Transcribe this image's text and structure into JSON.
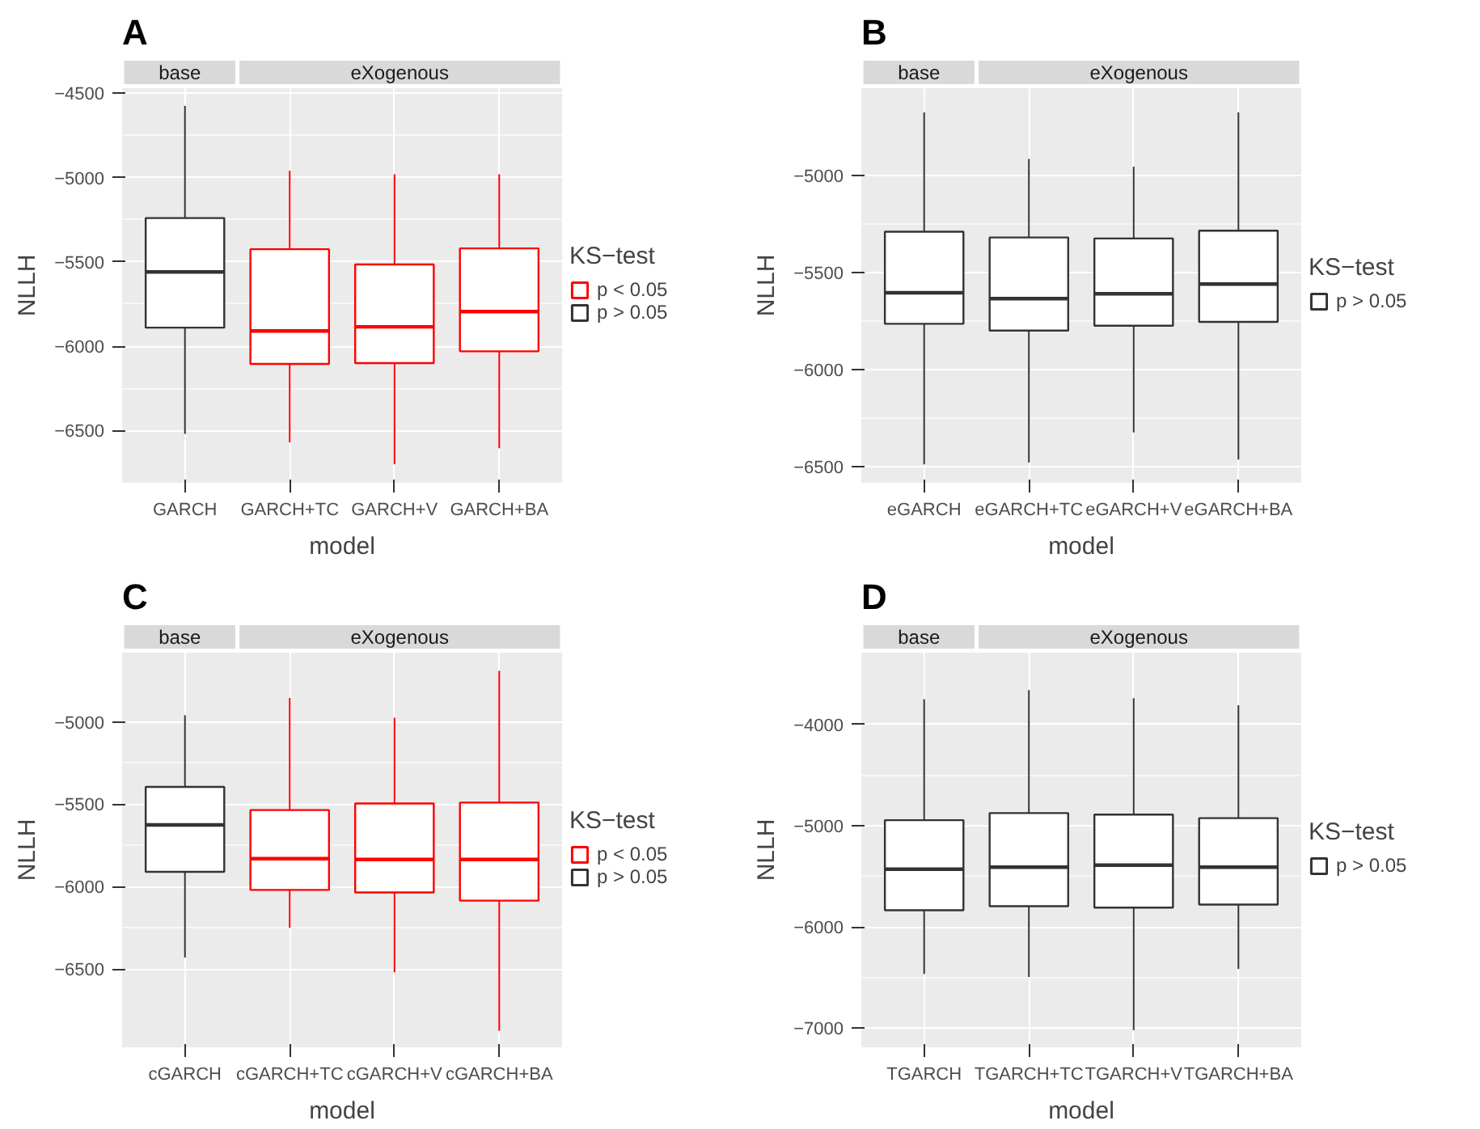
{
  "chart_data": [
    {
      "type": "box",
      "title": "A",
      "xlabel": "model",
      "ylabel": "NLLH",
      "categories": [
        "GARCH",
        "GARCH+TC",
        "GARCH+V",
        "GARCH+BA"
      ],
      "ylim": [
        -6810,
        -4470
      ],
      "yticks": [
        -6500,
        -6000,
        -5500,
        -5000,
        -4500
      ],
      "grid": true,
      "legend": "right",
      "legend_title": "KS−test",
      "annotations": [
        "base",
        "eXogenous"
      ],
      "series": [
        {
          "name": "p < 0.05",
          "color": "#ff0000",
          "boxes": [
            null,
            {
              "low": -6570,
              "q1": -6105,
              "median": -5910,
              "q3": -5425,
              "high": -4960
            },
            {
              "low": -6700,
              "q1": -6100,
              "median": -5885,
              "q3": -5515,
              "high": -4980
            },
            {
              "low": -6605,
              "q1": -6030,
              "median": -5795,
              "q3": -5420,
              "high": -4980
            }
          ]
        },
        {
          "name": "p > 0.05",
          "color": "#333333",
          "boxes": [
            {
              "low": -6520,
              "q1": -5890,
              "median": -5560,
              "q3": -5240,
              "high": -4575
            },
            null,
            null,
            null
          ]
        }
      ]
    },
    {
      "type": "box",
      "title": "B",
      "xlabel": "model",
      "ylabel": "NLLH",
      "categories": [
        "eGARCH",
        "eGARCH+TC",
        "eGARCH+V",
        "eGARCH+BA"
      ],
      "ylim": [
        -6585,
        -4550
      ],
      "yticks": [
        -6500,
        -6000,
        -5500,
        -5000
      ],
      "grid": true,
      "legend": "right",
      "legend_title": "KS−test",
      "annotations": [
        "base",
        "eXogenous"
      ],
      "series": [
        {
          "name": "p > 0.05",
          "color": "#333333",
          "boxes": [
            {
              "low": -6490,
              "q1": -5765,
              "median": -5605,
              "q3": -5290,
              "high": -4675
            },
            {
              "low": -6480,
              "q1": -5800,
              "median": -5635,
              "q3": -5320,
              "high": -4915
            },
            {
              "low": -6325,
              "q1": -5775,
              "median": -5610,
              "q3": -5325,
              "high": -4955
            },
            {
              "low": -6465,
              "q1": -5755,
              "median": -5560,
              "q3": -5285,
              "high": -4675
            }
          ]
        }
      ]
    },
    {
      "type": "box",
      "title": "C",
      "xlabel": "model",
      "ylabel": "NLLH",
      "categories": [
        "cGARCH",
        "cGARCH+TC",
        "cGARCH+V",
        "cGARCH+BA"
      ],
      "ylim": [
        -6975,
        -4580
      ],
      "yticks": [
        -6500,
        -6000,
        -5500,
        -5000
      ],
      "grid": true,
      "legend": "right",
      "legend_title": "KS−test",
      "annotations": [
        "base",
        "eXogenous"
      ],
      "series": [
        {
          "name": "p < 0.05",
          "color": "#ff0000",
          "boxes": [
            null,
            {
              "low": -6250,
              "q1": -6020,
              "median": -5830,
              "q3": -5535,
              "high": -4855
            },
            {
              "low": -6520,
              "q1": -6035,
              "median": -5835,
              "q3": -5495,
              "high": -4975
            },
            {
              "low": -6875,
              "q1": -6085,
              "median": -5835,
              "q3": -5490,
              "high": -4690
            }
          ]
        },
        {
          "name": "p > 0.05",
          "color": "#333333",
          "boxes": [
            {
              "low": -6430,
              "q1": -5910,
              "median": -5625,
              "q3": -5395,
              "high": -4960
            },
            null,
            null,
            null
          ]
        }
      ]
    },
    {
      "type": "box",
      "title": "D",
      "xlabel": "model",
      "ylabel": "NLLH",
      "categories": [
        "TGARCH",
        "TGARCH+TC",
        "TGARCH+V",
        "TGARCH+BA"
      ],
      "ylim": [
        -7190,
        -3290
      ],
      "yticks": [
        -7000,
        -6000,
        -5000,
        -4000
      ],
      "grid": true,
      "legend": "right",
      "legend_title": "KS−test",
      "annotations": [
        "base",
        "eXogenous"
      ],
      "series": [
        {
          "name": "p > 0.05",
          "color": "#333333",
          "boxes": [
            {
              "low": -6465,
              "q1": -5835,
              "median": -5430,
              "q3": -4945,
              "high": -3750
            },
            {
              "low": -6495,
              "q1": -5795,
              "median": -5410,
              "q3": -4875,
              "high": -3660
            },
            {
              "low": -7020,
              "q1": -5810,
              "median": -5390,
              "q3": -4890,
              "high": -3740
            },
            {
              "low": -6415,
              "q1": -5780,
              "median": -5410,
              "q3": -4925,
              "high": -3810
            }
          ]
        }
      ]
    }
  ]
}
